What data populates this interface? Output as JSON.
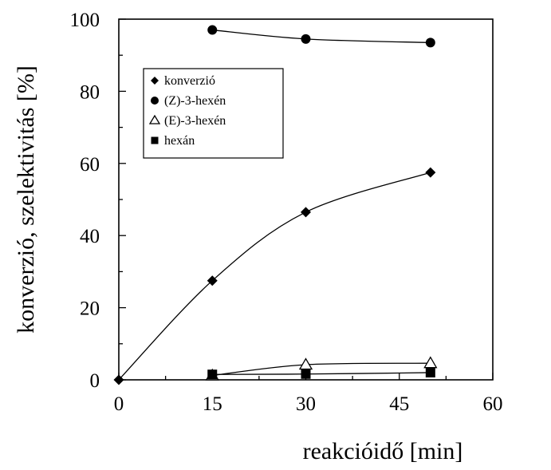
{
  "chart_data": {
    "type": "line",
    "xlabel": "reakcióidő [min]",
    "ylabel": "konverzió, szelektivitás [%]",
    "xlim": [
      0,
      60
    ],
    "ylim": [
      0,
      100
    ],
    "xticks": [
      "0",
      "15",
      "30",
      "45",
      "60"
    ],
    "yticks": [
      "0",
      "20",
      "40",
      "60",
      "80",
      "100"
    ],
    "grid": false,
    "legend_position": "upper-left",
    "series": [
      {
        "name": "konverzió",
        "marker": "diamond",
        "x": [
          0,
          15,
          30,
          50
        ],
        "y": [
          0,
          27.5,
          46.5,
          57.5
        ]
      },
      {
        "name": "(Z)-3-hexén",
        "marker": "circle",
        "x": [
          15,
          30,
          50
        ],
        "y": [
          97,
          94.5,
          93.5
        ]
      },
      {
        "name": "(E)-3-hexén",
        "marker": "triangle-open",
        "x": [
          15,
          30,
          50
        ],
        "y": [
          1.2,
          4.2,
          4.6
        ]
      },
      {
        "name": "hexán",
        "marker": "square",
        "x": [
          15,
          30,
          50
        ],
        "y": [
          1.5,
          1.6,
          2.0
        ]
      }
    ]
  }
}
